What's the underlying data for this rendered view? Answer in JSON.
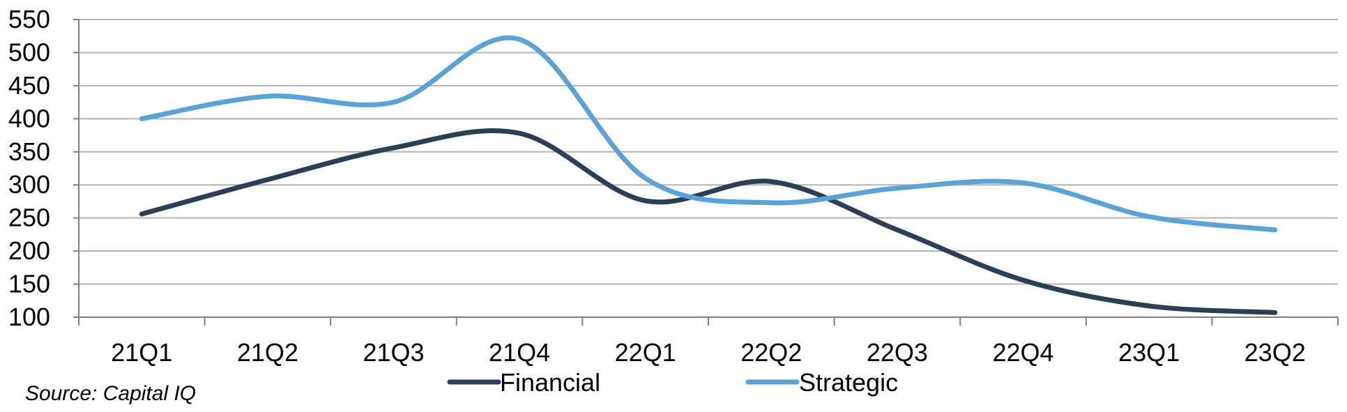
{
  "source_note": "Source: Capital IQ",
  "colors": {
    "Financial": "#2b3f57",
    "Strategic": "#5aa3d8",
    "grid": "#b3b3b3",
    "axis": "#808080"
  },
  "chart_data": {
    "type": "line",
    "categories": [
      "21Q1",
      "21Q2",
      "21Q3",
      "21Q4",
      "22Q1",
      "22Q2",
      "22Q3",
      "22Q4",
      "23Q1",
      "23Q2"
    ],
    "series": [
      {
        "name": "Financial",
        "values": [
          256,
          308,
          356,
          378,
          276,
          305,
          232,
          156,
          117,
          107
        ]
      },
      {
        "name": "Strategic",
        "values": [
          400,
          434,
          425,
          520,
          310,
          273,
          295,
          303,
          252,
          232
        ]
      }
    ],
    "yticks": [
      "100",
      "150",
      "200",
      "250",
      "300",
      "350",
      "400",
      "450",
      "500",
      "550"
    ],
    "ylim": [
      100,
      550
    ],
    "grid": true,
    "smooth": true,
    "legend_position": "bottom"
  }
}
